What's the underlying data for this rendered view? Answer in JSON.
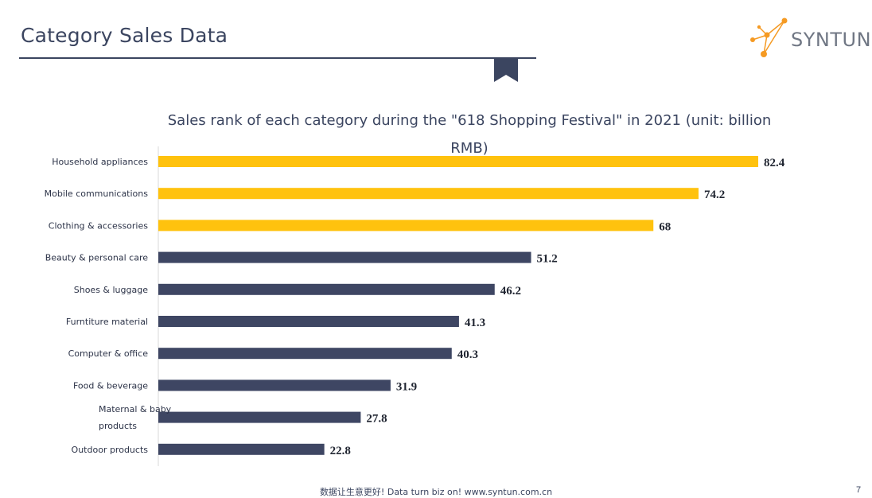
{
  "slide": {
    "title": "Category Sales Data",
    "logo_text": "SYNTUN",
    "footer": "数据让生意更好! Data turn biz on! www.syntun.com.cn",
    "page_number": "7"
  },
  "colors": {
    "highlight": "#ffc20e",
    "bar": "#3e4663",
    "title": "#3b4560",
    "logo_accent": "#f59a23"
  },
  "chart_data": {
    "type": "bar",
    "orientation": "horizontal",
    "title": "Sales rank of each category during the \"618 Shopping Festival\" in 2021 (unit: billion RMB)",
    "categories": [
      "Household appliances",
      "Mobile communications",
      "Clothing & accessories",
      "Beauty & personal care",
      "Shoes & luggage",
      "Furntiture material",
      "Computer & office",
      "Food & beverage",
      "Maternal & baby products",
      "Outdoor products"
    ],
    "category_lines": [
      [
        "Household appliances"
      ],
      [
        "Mobile communications"
      ],
      [
        "Clothing & accessories"
      ],
      [
        "Beauty & personal care"
      ],
      [
        "Shoes & luggage"
      ],
      [
        "Furntiture material"
      ],
      [
        "Computer & office"
      ],
      [
        "Food & beverage"
      ],
      [
        "Maternal & baby",
        "products"
      ],
      [
        "Outdoor products"
      ]
    ],
    "values": [
      82.4,
      74.2,
      68,
      51.2,
      46.2,
      41.3,
      40.3,
      31.9,
      27.8,
      22.8
    ],
    "highlighted": [
      true,
      true,
      true,
      false,
      false,
      false,
      false,
      false,
      false,
      false
    ],
    "xlim": [
      0,
      82.4
    ],
    "grid": false,
    "legend": "none",
    "data_labels": true
  }
}
